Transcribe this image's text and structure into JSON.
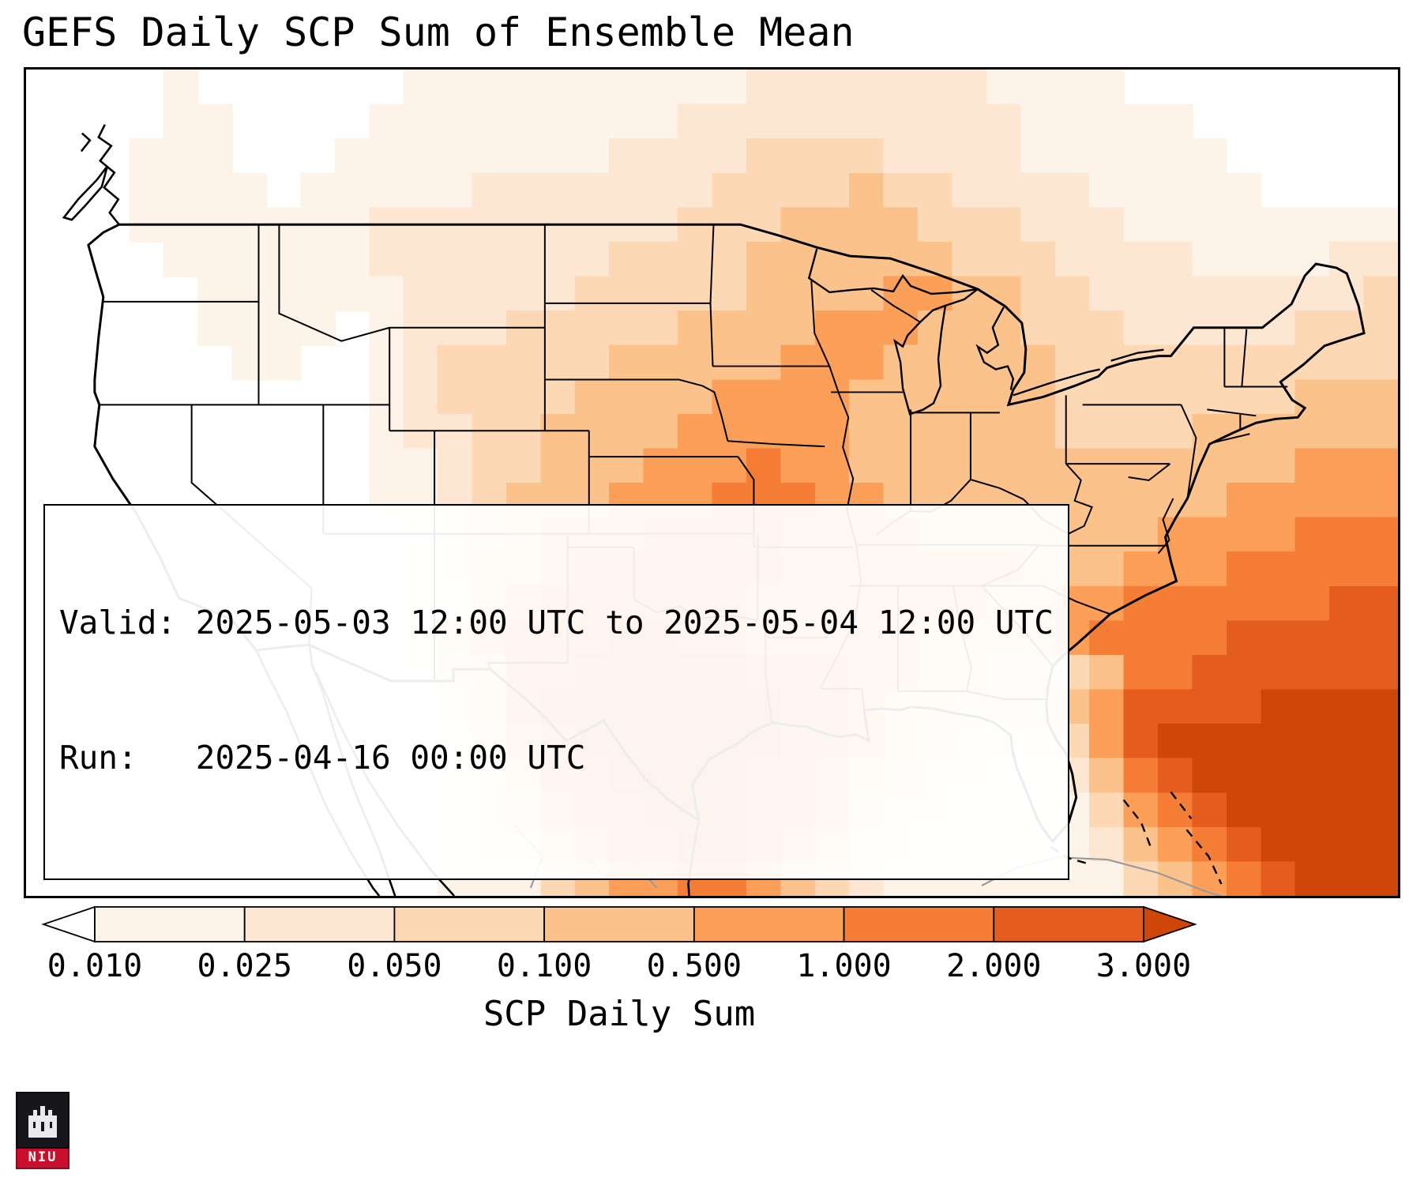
{
  "title": "GEFS Daily SCP Sum of Ensemble Mean",
  "info_box": {
    "line1": "Valid: 2025-05-03 12:00 UTC to 2025-05-04 12:00 UTC",
    "line2": "Run:   2025-04-16 00:00 UTC"
  },
  "chart_data": {
    "type": "heatmap",
    "title": "GEFS Daily SCP Sum of Ensemble Mean",
    "colorbar_label": "SCP Daily Sum",
    "tick_labels": [
      "0.010",
      "0.025",
      "0.050",
      "0.100",
      "0.500",
      "1.000",
      "2.000",
      "3.000"
    ],
    "levels": [
      0.01,
      0.025,
      0.05,
      0.1,
      0.5,
      1.0,
      2.0,
      3.0
    ],
    "scale_colors": [
      "#ffffff",
      "#fef3e8",
      "#fde7d2",
      "#fcd8b5",
      "#fcc28b",
      "#fc9f58",
      "#f57d36",
      "#e55c1f",
      "#cf4708"
    ],
    "legend_position": "bottom",
    "grid_note": "rows are coarse SCP color-class codes 0-8 (west-to-east, north-to-south) indexing scale_colors",
    "grid": [
      "0000100000011111111112222222111100000000",
      "0000110000111111111222222222211111000000",
      "0001110001111111122223333222211111100000",
      "0001111011111222222233334332222111110000",
      "0001111111222222222333444433322211111111",
      "0000111111222222233334444443332222111122",
      "0000011111122222333334444554433222222223",
      "0000011110122233333444455544433322222333",
      "0000001100123333344444555444443333333333",
      "0000000000123333444455554444443333333444",
      "0000000000122334444555554444443333444444",
      "0000000000112334445556554444444444444555",
      "0000000000112344455566655444444444455555",
      "0000000000012345556666555544444445555666",
      "0000000000012445666666555555544455566666",
      "0000000000011456666665555555445566666677",
      "0000000000014566677665555544445666677777",
      "0000000000013466777776665544333466777777",
      "0000000000002467777777665443334577778888",
      "0000000000001356777777665432223578888888",
      "0000000000001246677776654322112467888888",
      "0000000000001235667776653221111356788888",
      "0000000000001224566776542211111245678888",
      "0000000000001113455665432111111134567888"
    ]
  },
  "logo": {
    "text": "NIU"
  }
}
